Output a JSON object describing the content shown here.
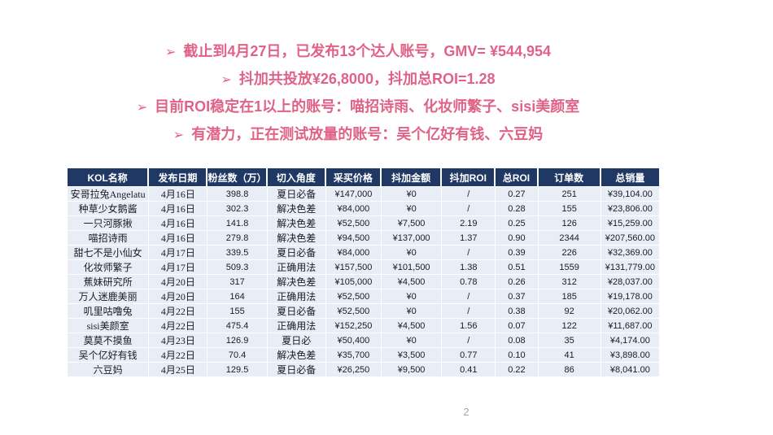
{
  "slide": {
    "page_number": "2",
    "colors": {
      "accent_pink": "#E06287",
      "header_navy": "#1F3864",
      "row_bg": "#E9EDF5",
      "page_number_gray": "#A6A6A6"
    }
  },
  "bullets": [
    {
      "marker": "➢",
      "text": "截止到4月27日，已发布13个达人账号，GMV= ¥544,954"
    },
    {
      "marker": "➢",
      "text": "抖加共投放¥26,8000，抖加总ROI=1.28"
    },
    {
      "marker": "➢",
      "text": "目前ROI稳定在1以上的账号：喵招诗雨、化妆师繁子、sisi美颜室"
    },
    {
      "marker": "➢",
      "text": "有潜力，正在测试放量的账号：吴个亿好有钱、六豆妈"
    }
  ],
  "table": {
    "columns": [
      "KOL名称",
      "发布日期",
      "粉丝数（万）",
      "切入角度",
      "采买价格",
      "抖加金额",
      "抖加ROI",
      "总ROI",
      "订单数",
      "总销量"
    ],
    "rows": [
      [
        "安哥拉兔Angelatu",
        "4月16日",
        "398.8",
        "夏日必备",
        "¥147,000",
        "¥0",
        "/",
        "0.27",
        "251",
        "¥39,104.00"
      ],
      [
        "种草少女鹅酱",
        "4月16日",
        "302.3",
        "解决色差",
        "¥84,000",
        "¥0",
        "/",
        "0.28",
        "155",
        "¥23,806.00"
      ],
      [
        "一只河豚揪",
        "4月16日",
        "141.8",
        "解决色差",
        "¥52,500",
        "¥7,500",
        "2.19",
        "0.25",
        "126",
        "¥15,259.00"
      ],
      [
        "喵招诗雨",
        "4月16日",
        "279.8",
        "解决色差",
        "¥94,500",
        "¥137,000",
        "1.37",
        "0.90",
        "2344",
        "¥207,560.00"
      ],
      [
        "甜七不是小仙女",
        "4月17日",
        "339.5",
        "夏日必备",
        "¥84,000",
        "¥0",
        "/",
        "0.39",
        "226",
        "¥32,369.00"
      ],
      [
        "化妆师繁子",
        "4月17日",
        "509.3",
        "正确用法",
        "¥157,500",
        "¥101,500",
        "1.38",
        "0.51",
        "1559",
        "¥131,779.00"
      ],
      [
        "蕉妹研究所",
        "4月20日",
        "317",
        "解决色差",
        "¥105,000",
        "¥4,500",
        "0.78",
        "0.26",
        "312",
        "¥28,037.00"
      ],
      [
        "万人迷鹿美丽",
        "4月20日",
        "164",
        "正确用法",
        "¥52,500",
        "¥0",
        "/",
        "0.37",
        "185",
        "¥19,178.00"
      ],
      [
        "叽里咕噜兔",
        "4月22日",
        "155",
        "夏日必备",
        "¥52,500",
        "¥0",
        "/",
        "0.38",
        "92",
        "¥20,062.00"
      ],
      [
        "sisi美颜室",
        "4月22日",
        "475.4",
        "正确用法",
        "¥152,250",
        "¥4,500",
        "1.56",
        "0.07",
        "122",
        "¥11,687.00"
      ],
      [
        "莫莫不摸鱼",
        "4月23日",
        "126.9",
        "夏日必",
        "¥50,400",
        "¥0",
        "/",
        "0.08",
        "35",
        "¥4,174.00"
      ],
      [
        "吴个亿好有钱",
        "4月22日",
        "70.4",
        "解决色差",
        "¥35,700",
        "¥3,500",
        "0.77",
        "0.10",
        "41",
        "¥3,898.00"
      ],
      [
        "六豆妈",
        "4月25日",
        "129.5",
        "夏日必备",
        "¥26,250",
        "¥9,500",
        "0.41",
        "0.22",
        "86",
        "¥8,041.00"
      ]
    ]
  }
}
